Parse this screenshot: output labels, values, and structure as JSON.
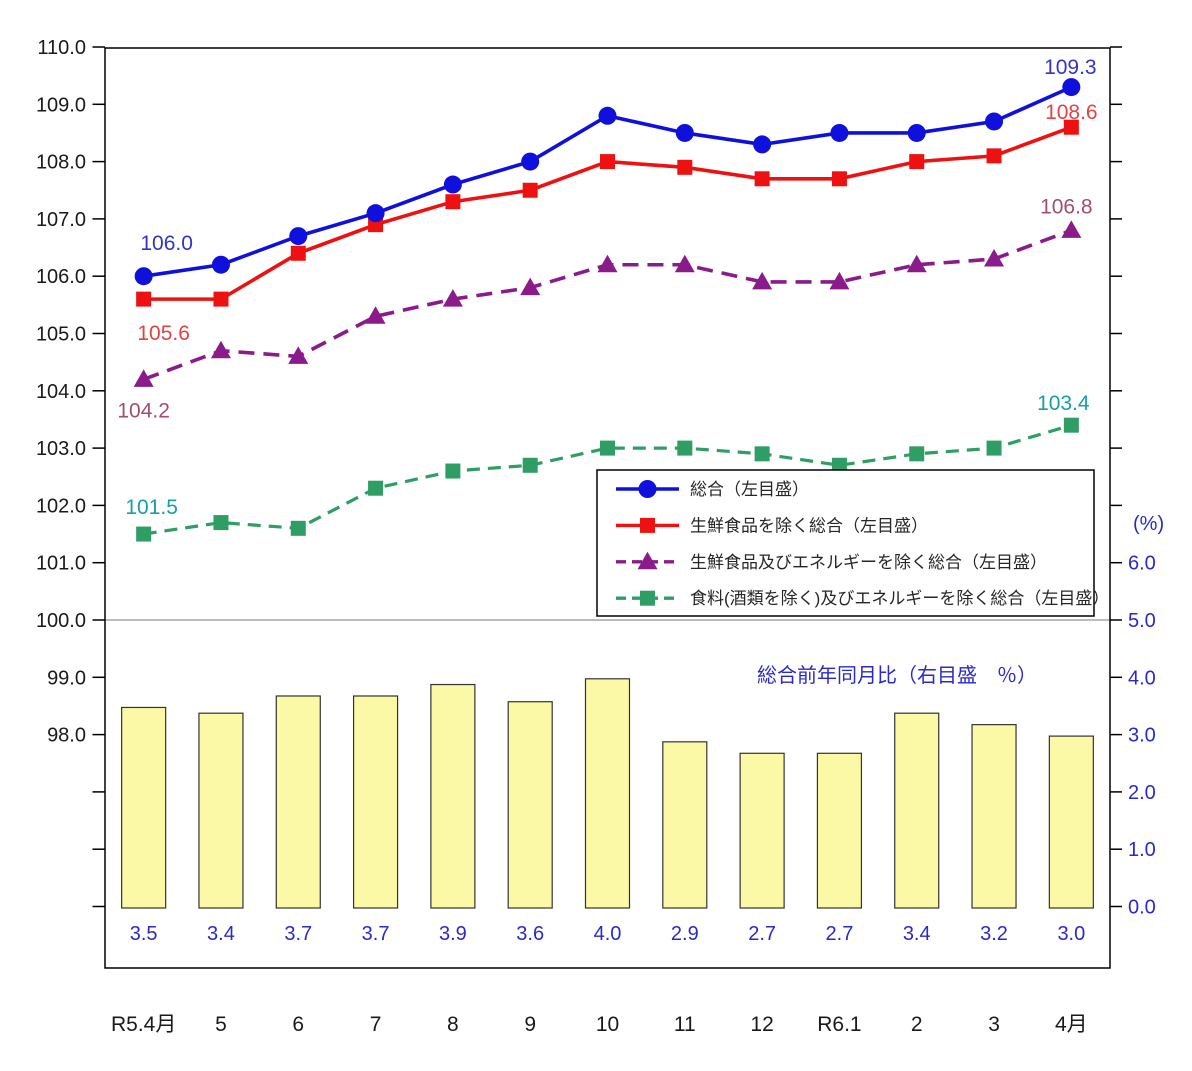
{
  "chart_data": {
    "type": "line+bar",
    "categories": [
      "R5.4月",
      "5",
      "6",
      "7",
      "8",
      "9",
      "10",
      "11",
      "12",
      "R6.1",
      "2",
      "3",
      "4月"
    ],
    "left_axis": {
      "tick_labels": [
        "110.0",
        "109.0",
        "108.0",
        "107.0",
        "106.0",
        "105.0",
        "104.0",
        "103.0",
        "102.0",
        "101.0",
        "100.0",
        "99.0",
        "98.0"
      ],
      "tick_values": [
        110,
        109,
        108,
        107,
        106,
        105,
        104,
        103,
        102,
        101,
        100,
        99,
        98
      ],
      "min_ticked": 95,
      "max": 110
    },
    "right_axis": {
      "unit_label": "(%)",
      "tick_labels": [
        "6.0",
        "5.0",
        "4.0",
        "3.0",
        "2.0",
        "1.0",
        "0.0"
      ],
      "tick_values": [
        6,
        5,
        4,
        3,
        2,
        1,
        0
      ]
    },
    "series": [
      {
        "id": "line-all-items",
        "legend": "総合（左目盛）",
        "color": "#1010DC",
        "text_color": "#3333CC",
        "marker": "circle",
        "dash": null,
        "values": [
          106.0,
          106.2,
          106.7,
          107.1,
          107.6,
          108.0,
          108.8,
          108.5,
          108.3,
          108.5,
          108.5,
          108.7,
          109.3
        ],
        "first_label": "106.0",
        "last_label": "109.3"
      },
      {
        "id": "line-ex-fresh-food",
        "legend": "生鮮食品を除く総合（左目盛）",
        "color": "#EE1111",
        "text_color": "#E04444",
        "marker": "square",
        "dash": null,
        "values": [
          105.6,
          105.6,
          106.4,
          106.9,
          107.3,
          107.5,
          108.0,
          107.9,
          107.7,
          107.7,
          108.0,
          108.1,
          108.6
        ],
        "first_label": "105.6",
        "last_label": "108.6"
      },
      {
        "id": "line-ex-fresh-food-energy",
        "legend": "生鮮食品及びエネルギーを除く総合（左目盛）",
        "color": "#8B1A8B",
        "text_color": "#A04E73",
        "marker": "triangle",
        "dash": [
          16,
          9
        ],
        "values": [
          104.2,
          104.7,
          104.6,
          105.3,
          105.6,
          105.8,
          106.2,
          106.2,
          105.9,
          105.9,
          106.2,
          106.3,
          106.8
        ],
        "first_label": "104.2",
        "last_label": "106.8"
      },
      {
        "id": "line-ex-food-energy",
        "legend": "食料(酒類を除く)及びエネルギーを除く総合（左目盛）",
        "color": "#2E9E64",
        "text_color": "#18A0A0",
        "marker": "square",
        "dash": [
          13,
          8
        ],
        "values": [
          101.5,
          101.7,
          101.6,
          102.3,
          102.6,
          102.7,
          103.0,
          103.0,
          102.9,
          102.7,
          102.9,
          103.0,
          103.4
        ],
        "first_label": "101.5",
        "last_label": "103.4"
      }
    ],
    "bars": {
      "id": "bars-yoy-all-items",
      "values": [
        3.5,
        3.4,
        3.7,
        3.7,
        3.9,
        3.6,
        4.0,
        2.9,
        2.7,
        2.7,
        3.4,
        3.2,
        3.0
      ],
      "labels": [
        "3.5",
        "3.4",
        "3.7",
        "3.7",
        "3.9",
        "3.6",
        "4.0",
        "2.9",
        "2.7",
        "2.7",
        "3.4",
        "3.2",
        "3.0"
      ],
      "fill": "#FBF9A5",
      "stroke": "#333333",
      "label_color": "#2A2ACC"
    },
    "annotation": "総合前年同月比（右目盛　％）",
    "colors": {
      "axis_text": "#1A1A1A",
      "right_axis_text": "#2A2ACC",
      "annotation_text": "#2A2ACC",
      "border": "#000000",
      "divider_gray": "#A6A6A6",
      "legend_text": "#262626",
      "legend_border": "#000000",
      "background": "#FFFFFF"
    }
  }
}
